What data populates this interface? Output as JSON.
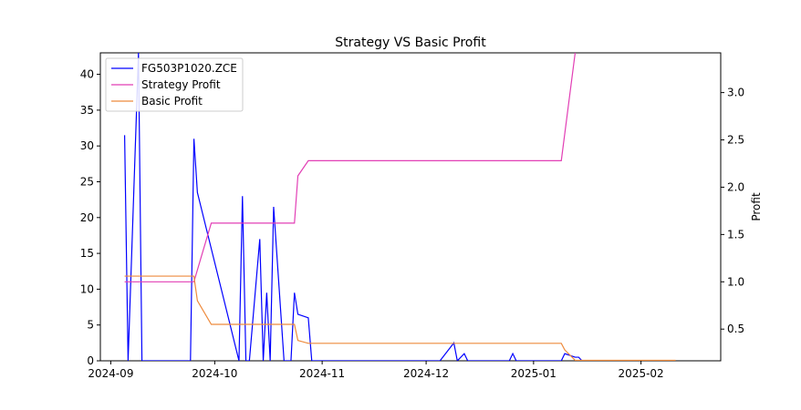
{
  "chart_data": {
    "type": "line",
    "title": "Strategy VS Basic Profit",
    "xlabel": "",
    "ylabel_left": "",
    "ylabel_right": "Profit",
    "x_ticks": [
      "2024-09",
      "2024-10",
      "2024-11",
      "2024-12",
      "2025-01",
      "2025-02"
    ],
    "y_left_ticks": [
      "0",
      "5",
      "10",
      "15",
      "20",
      "25",
      "30",
      "35",
      "40"
    ],
    "y_right_ticks": [
      "0.5",
      "1.0",
      "1.5",
      "2.0",
      "2.5",
      "3.0"
    ],
    "xlim": [
      "2024-08-29",
      "2025-02-24"
    ],
    "ylim_left": [
      0,
      43
    ],
    "ylim_right": [
      0.165,
      3.42
    ],
    "grid": false,
    "legend_position": "upper left",
    "series": [
      {
        "name": "FG503P1020.ZCE",
        "axis": "left",
        "color": "#0000ff",
        "points": [
          [
            "2024-09-05",
            31.5
          ],
          [
            "2024-09-06",
            0
          ],
          [
            "2024-09-09",
            43
          ],
          [
            "2024-09-10",
            0
          ],
          [
            "2024-09-24",
            0
          ],
          [
            "2024-09-25",
            31
          ],
          [
            "2024-09-26",
            23.5
          ],
          [
            "2024-10-08",
            0
          ],
          [
            "2024-10-09",
            23
          ],
          [
            "2024-10-10",
            0
          ],
          [
            "2024-10-11",
            0
          ],
          [
            "2024-10-14",
            17
          ],
          [
            "2024-10-15",
            0
          ],
          [
            "2024-10-16",
            9.5
          ],
          [
            "2024-10-17",
            0
          ],
          [
            "2024-10-18",
            21.5
          ],
          [
            "2024-10-21",
            0
          ],
          [
            "2024-10-23",
            0
          ],
          [
            "2024-10-24",
            9.5
          ],
          [
            "2024-10-25",
            6.5
          ],
          [
            "2024-10-28",
            6
          ],
          [
            "2024-10-29",
            0
          ],
          [
            "2024-12-05",
            0
          ],
          [
            "2024-12-09",
            2.5
          ],
          [
            "2024-12-10",
            0
          ],
          [
            "2024-12-12",
            1
          ],
          [
            "2024-12-13",
            0
          ],
          [
            "2024-12-25",
            0
          ],
          [
            "2024-12-26",
            1
          ],
          [
            "2024-12-27",
            0
          ],
          [
            "2025-01-09",
            0
          ],
          [
            "2025-01-10",
            1
          ],
          [
            "2025-01-13",
            0.5
          ],
          [
            "2025-01-14",
            0.5
          ],
          [
            "2025-01-15",
            0
          ],
          [
            "2025-02-11",
            0
          ]
        ]
      },
      {
        "name": "Strategy Profit",
        "axis": "right",
        "color": "#e23fb5",
        "points": [
          [
            "2024-09-05",
            1.0
          ],
          [
            "2024-09-25",
            1.0
          ],
          [
            "2024-09-27",
            1.25
          ],
          [
            "2024-09-30",
            1.62
          ],
          [
            "2024-10-24",
            1.62
          ],
          [
            "2024-10-25",
            2.12
          ],
          [
            "2024-10-28",
            2.28
          ],
          [
            "2025-01-09",
            2.28
          ],
          [
            "2025-01-13",
            3.42
          ]
        ]
      },
      {
        "name": "Basic Profit",
        "axis": "right",
        "color": "#ee8a3c",
        "points": [
          [
            "2024-09-05",
            1.06
          ],
          [
            "2024-09-25",
            1.06
          ],
          [
            "2024-09-26",
            0.8
          ],
          [
            "2024-09-30",
            0.55
          ],
          [
            "2024-10-24",
            0.55
          ],
          [
            "2024-10-25",
            0.38
          ],
          [
            "2024-10-28",
            0.35
          ],
          [
            "2025-01-09",
            0.35
          ],
          [
            "2025-01-10",
            0.28
          ],
          [
            "2025-01-13",
            0.17
          ],
          [
            "2025-02-11",
            0.17
          ]
        ]
      }
    ]
  }
}
